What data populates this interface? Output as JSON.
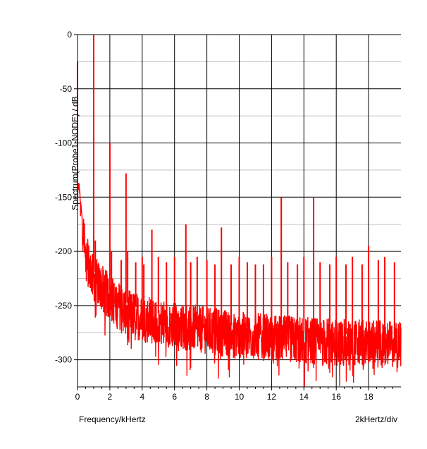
{
  "chart_data": {
    "type": "line",
    "xlabel": "Frequency/kHertz",
    "ylabel": "Spectrum(Probe1-NODE) / dB",
    "x_scale_note": "2kHertz/div",
    "xlim": [
      0,
      20
    ],
    "ylim": [
      -325,
      0
    ],
    "x_major_ticks": [
      0,
      2,
      4,
      6,
      8,
      10,
      12,
      14,
      16,
      18
    ],
    "y_major_ticks": [
      0,
      -50,
      -100,
      -150,
      -200,
      -250,
      -300
    ],
    "y_minor_step": 25,
    "grid": true,
    "series_color": "#ff0000",
    "noise_floor": {
      "x": [
        0.1,
        0.5,
        1,
        2,
        3,
        4,
        6,
        8,
        10,
        12,
        14,
        16,
        18,
        20
      ],
      "y": [
        -140,
        -205,
        -225,
        -243,
        -255,
        -262,
        -268,
        -273,
        -277,
        -280,
        -282,
        -284,
        -285,
        -286
      ]
    },
    "peaks": {
      "x": [
        0,
        1.0,
        1.1,
        2.0,
        2.1,
        2.7,
        3.0,
        3.1,
        3.6,
        4.0,
        4.1,
        4.6,
        5.0,
        5.5,
        6.0,
        6.7,
        7.0,
        7.4,
        8.0,
        8.5,
        8.9,
        9.5,
        10.0,
        10.5,
        11.0,
        11.5,
        12.0,
        12.6,
        13.0,
        13.6,
        14.0,
        14.6,
        15.0,
        15.6,
        16.0,
        16.6,
        17.0,
        17.6,
        18.0,
        18.6,
        19.0,
        19.6
      ],
      "y": [
        -25,
        0,
        -190,
        -100,
        -200,
        -208,
        -128,
        -200,
        -210,
        -205,
        -212,
        -180,
        -205,
        -210,
        -205,
        -175,
        -210,
        -205,
        -208,
        -212,
        -178,
        -212,
        -205,
        -210,
        -212,
        -212,
        -205,
        -150,
        -210,
        -212,
        -205,
        -150,
        -210,
        -212,
        -205,
        -212,
        -205,
        -212,
        -195,
        -208,
        -205,
        -210
      ]
    }
  }
}
